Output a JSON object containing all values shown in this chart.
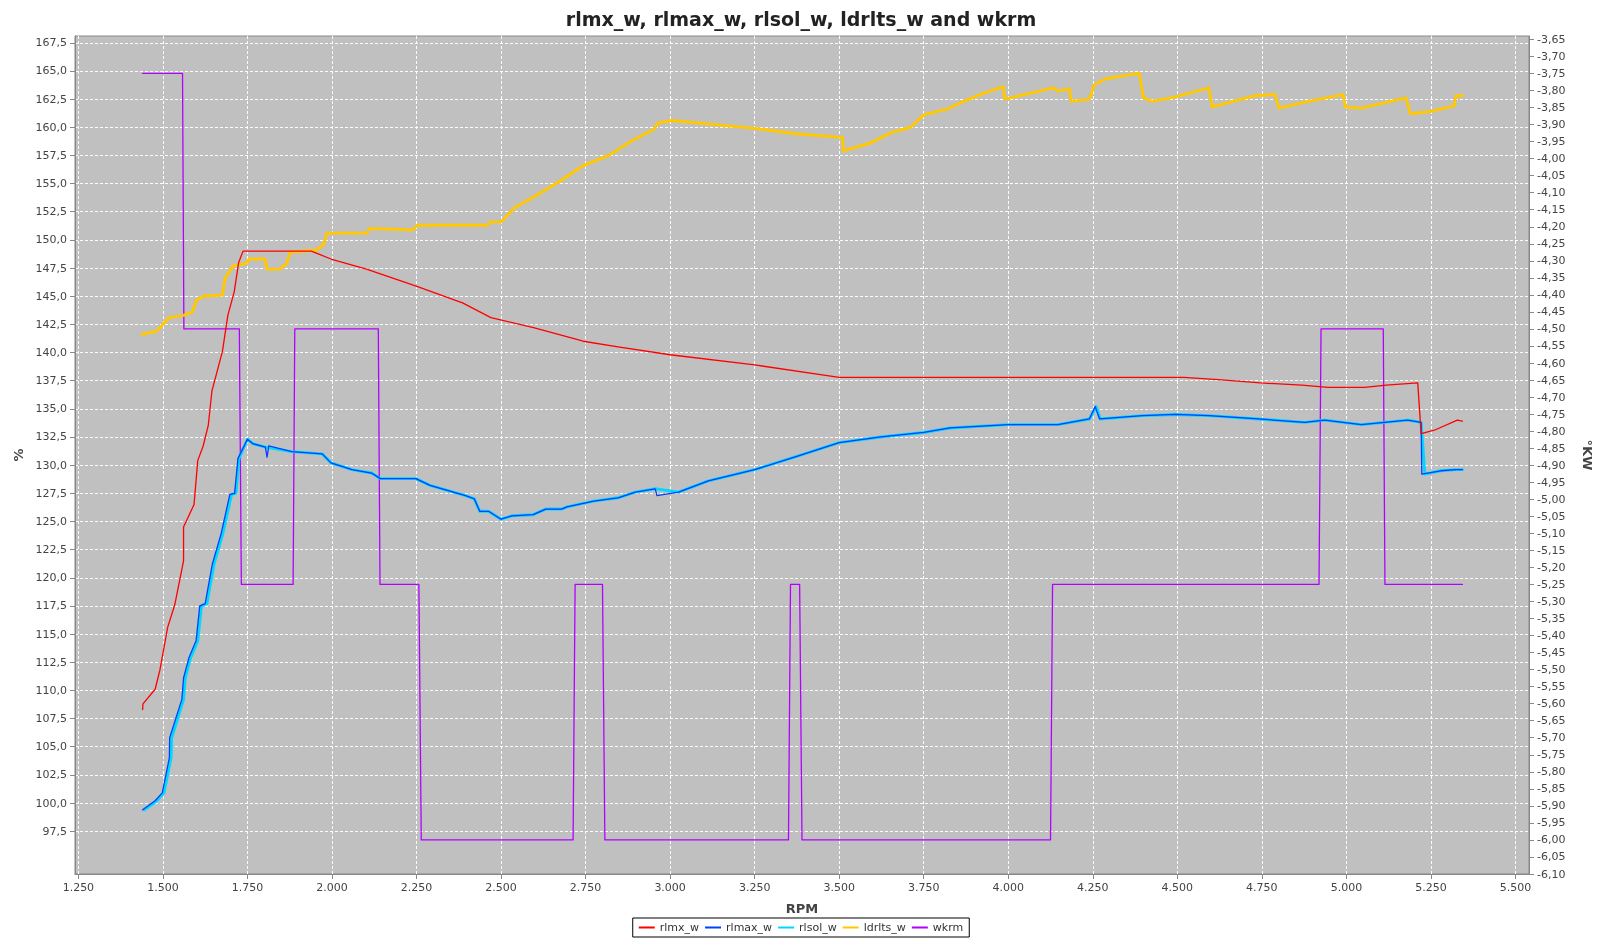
{
  "chart_data": {
    "type": "line",
    "title": "rlmx_w, rlmax_w, rlsol_w, ldrlts_w and wkrm",
    "xlabel": "RPM",
    "ylabel": "%",
    "y2label": "°KW",
    "xlim": [
      1240,
      5540
    ],
    "ylim": [
      93.7,
      168.1
    ],
    "y2lim": [
      -6.1,
      -3.64
    ],
    "xticks": [
      {
        "value": 1250,
        "label": "1.250"
      },
      {
        "value": 1500,
        "label": "1.500"
      },
      {
        "value": 1750,
        "label": "1.750"
      },
      {
        "value": 2000,
        "label": "2.000"
      },
      {
        "value": 2250,
        "label": "2.250"
      },
      {
        "value": 2500,
        "label": "2.500"
      },
      {
        "value": 2750,
        "label": "2.750"
      },
      {
        "value": 3000,
        "label": "3.000"
      },
      {
        "value": 3250,
        "label": "3.250"
      },
      {
        "value": 3500,
        "label": "3.500"
      },
      {
        "value": 3750,
        "label": "3.750"
      },
      {
        "value": 4000,
        "label": "4.000"
      },
      {
        "value": 4250,
        "label": "4.250"
      },
      {
        "value": 4500,
        "label": "4.500"
      },
      {
        "value": 4750,
        "label": "4.750"
      },
      {
        "value": 5000,
        "label": "5.000"
      },
      {
        "value": 5250,
        "label": "5.250"
      },
      {
        "value": 5500,
        "label": "5.500"
      }
    ],
    "yticks": [
      {
        "value": 97.5,
        "label": "97,5"
      },
      {
        "value": 100,
        "label": "100,0"
      },
      {
        "value": 102.5,
        "label": "102,5"
      },
      {
        "value": 105,
        "label": "105,0"
      },
      {
        "value": 107.5,
        "label": "107,5"
      },
      {
        "value": 110,
        "label": "110,0"
      },
      {
        "value": 112.5,
        "label": "112,5"
      },
      {
        "value": 115,
        "label": "115,0"
      },
      {
        "value": 117.5,
        "label": "117,5"
      },
      {
        "value": 120,
        "label": "120,0"
      },
      {
        "value": 122.5,
        "label": "122,5"
      },
      {
        "value": 125,
        "label": "125,0"
      },
      {
        "value": 127.5,
        "label": "127,5"
      },
      {
        "value": 130,
        "label": "130,0"
      },
      {
        "value": 132.5,
        "label": "132,5"
      },
      {
        "value": 135,
        "label": "135,0"
      },
      {
        "value": 137.5,
        "label": "137,5"
      },
      {
        "value": 140,
        "label": "140,0"
      },
      {
        "value": 142.5,
        "label": "142,5"
      },
      {
        "value": 145,
        "label": "145,0"
      },
      {
        "value": 147.5,
        "label": "147,5"
      },
      {
        "value": 150,
        "label": "150,0"
      },
      {
        "value": 152.5,
        "label": "152,5"
      },
      {
        "value": 155,
        "label": "155,0"
      },
      {
        "value": 157.5,
        "label": "157,5"
      },
      {
        "value": 160,
        "label": "160,0"
      },
      {
        "value": 162.5,
        "label": "162,5"
      },
      {
        "value": 165,
        "label": "165,0"
      },
      {
        "value": 167.5,
        "label": "167,5"
      }
    ],
    "y2ticks": [
      {
        "value": -6.1,
        "label": "-6,10"
      },
      {
        "value": -6.05,
        "label": "-6,05"
      },
      {
        "value": -6,
        "label": "-6,00"
      },
      {
        "value": -5.95,
        "label": "-5,95"
      },
      {
        "value": -5.9,
        "label": "-5,90"
      },
      {
        "value": -5.85,
        "label": "-5,85"
      },
      {
        "value": -5.8,
        "label": "-5,80"
      },
      {
        "value": -5.75,
        "label": "-5,75"
      },
      {
        "value": -5.7,
        "label": "-5,70"
      },
      {
        "value": -5.65,
        "label": "-5,65"
      },
      {
        "value": -5.6,
        "label": "-5,60"
      },
      {
        "value": -5.55,
        "label": "-5,55"
      },
      {
        "value": -5.5,
        "label": "-5,50"
      },
      {
        "value": -5.45,
        "label": "-5,45"
      },
      {
        "value": -5.4,
        "label": "-5,40"
      },
      {
        "value": -5.35,
        "label": "-5,35"
      },
      {
        "value": -5.3,
        "label": "-5,30"
      },
      {
        "value": -5.25,
        "label": "-5,25"
      },
      {
        "value": -5.2,
        "label": "-5,20"
      },
      {
        "value": -5.15,
        "label": "-5,15"
      },
      {
        "value": -5.1,
        "label": "-5,10"
      },
      {
        "value": -5.05,
        "label": "-5,05"
      },
      {
        "value": -5,
        "label": "-5,00"
      },
      {
        "value": -4.95,
        "label": "-4,95"
      },
      {
        "value": -4.9,
        "label": "-4,90"
      },
      {
        "value": -4.85,
        "label": "-4,85"
      },
      {
        "value": -4.8,
        "label": "-4,80"
      },
      {
        "value": -4.75,
        "label": "-4,75"
      },
      {
        "value": -4.7,
        "label": "-4,70"
      },
      {
        "value": -4.65,
        "label": "-4,65"
      },
      {
        "value": -4.6,
        "label": "-4,60"
      },
      {
        "value": -4.55,
        "label": "-4,55"
      },
      {
        "value": -4.5,
        "label": "-4,50"
      },
      {
        "value": -4.45,
        "label": "-4,45"
      },
      {
        "value": -4.4,
        "label": "-4,40"
      },
      {
        "value": -4.35,
        "label": "-4,35"
      },
      {
        "value": -4.3,
        "label": "-4,30"
      },
      {
        "value": -4.25,
        "label": "-4,25"
      },
      {
        "value": -4.2,
        "label": "-4,20"
      },
      {
        "value": -4.15,
        "label": "-4,15"
      },
      {
        "value": -4.1,
        "label": "-4,10"
      },
      {
        "value": -4.05,
        "label": "-4,05"
      },
      {
        "value": -4,
        "label": "-4,00"
      },
      {
        "value": -3.95,
        "label": "-3,95"
      },
      {
        "value": -3.9,
        "label": "-3,90"
      },
      {
        "value": -3.85,
        "label": "-3,85"
      },
      {
        "value": -3.8,
        "label": "-3,80"
      },
      {
        "value": -3.75,
        "label": "-3,75"
      },
      {
        "value": -3.7,
        "label": "-3,70"
      },
      {
        "value": -3.65,
        "label": "-3,65"
      }
    ],
    "grid": true,
    "legend": "bottom",
    "marker": "none",
    "line_style": "solid",
    "series": [
      {
        "name": "rlmx_w",
        "color": "#ff0000",
        "x": [
          1440,
          1441,
          1477,
          1491,
          1514,
          1535,
          1561,
          1561,
          1592,
          1603,
          1619,
          1634,
          1645,
          1676,
          1692,
          1711,
          1724,
          1737,
          1939,
          1997,
          2102,
          2249,
          2386,
          2470,
          2596,
          2743,
          2846,
          3000,
          3250,
          3500,
          4260,
          4520,
          4622,
          4745,
          4868,
          4946,
          5054,
          5118,
          5211,
          5221,
          5260,
          5328,
          5343
        ],
        "values": [
          108.3,
          108.8,
          110.1,
          111.8,
          115.6,
          117.6,
          121.5,
          124.5,
          126.5,
          130.4,
          131.7,
          133.5,
          136.6,
          140.1,
          143.3,
          145.4,
          148.0,
          149.0,
          149.0,
          148.3,
          147.4,
          145.9,
          144.4,
          143.1,
          142.2,
          141.0,
          140.5,
          139.8,
          138.9,
          137.8,
          137.8,
          137.8,
          137.6,
          137.3,
          137.1,
          136.9,
          136.9,
          137.1,
          137.3,
          132.8,
          133.1,
          134.0,
          133.9
        ]
      },
      {
        "name": "rlmax_w",
        "color": "#0040ff",
        "x": [
          1440,
          1477,
          1498,
          1519,
          1520,
          1556,
          1561,
          1577,
          1598,
          1609,
          1625,
          1646,
          1672,
          1698,
          1712,
          1722,
          1750,
          1766,
          1803,
          1808,
          1813,
          1881,
          1971,
          1997,
          2059,
          2117,
          2143,
          2248,
          2290,
          2395,
          2421,
          2437,
          2463,
          2500,
          2532,
          2595,
          2632,
          2679,
          2695,
          2774,
          2846,
          2897,
          2956,
          2961,
          3025,
          3113,
          3250,
          3377,
          3500,
          3623,
          3750,
          3828,
          4000,
          4147,
          4240,
          4257,
          4270,
          4397,
          4495,
          4593,
          4740,
          4877,
          4936,
          5044,
          5181,
          5221,
          5223,
          5279,
          5324,
          5343
        ],
        "values": [
          99.4,
          100.2,
          100.9,
          104.0,
          105.8,
          109.2,
          111.1,
          112.9,
          114.4,
          117.5,
          117.7,
          121.2,
          123.9,
          127.4,
          127.5,
          130.6,
          132.3,
          131.9,
          131.6,
          130.7,
          131.7,
          131.2,
          131.0,
          130.2,
          129.6,
          129.3,
          128.8,
          128.8,
          128.2,
          127.3,
          127.0,
          125.9,
          125.9,
          125.2,
          125.5,
          125.6,
          126.1,
          126.1,
          126.3,
          126.8,
          127.1,
          127.6,
          127.9,
          127.3,
          127.6,
          128.6,
          129.6,
          130.8,
          132.0,
          132.5,
          132.9,
          133.3,
          133.6,
          133.6,
          134.1,
          135.2,
          134.1,
          134.4,
          134.5,
          134.4,
          134.1,
          133.8,
          134.0,
          133.6,
          134.0,
          133.8,
          129.2,
          129.5,
          129.6,
          129.6
        ]
      },
      {
        "name": "rlsol_w",
        "color": "#00d8ff",
        "x": [
          1445,
          1482,
          1503,
          1524,
          1526,
          1561,
          1566,
          1582,
          1603,
          1614,
          1630,
          1651,
          1677,
          1703,
          1716,
          1725,
          1750,
          1766,
          1803,
          1881,
          1971,
          1997,
          2059,
          2117,
          2143,
          2248,
          2290,
          2395,
          2421,
          2437,
          2463,
          2500,
          2532,
          2595,
          2632,
          2679,
          2695,
          2774,
          2846,
          2897,
          2956,
          3025,
          3113,
          3250,
          3377,
          3500,
          3623,
          3750,
          3828,
          4000,
          4147,
          4240,
          4260,
          4272,
          4397,
          4495,
          4593,
          4740,
          4877,
          4936,
          5044,
          5181,
          5221,
          5232,
          5279,
          5324,
          5343
        ],
        "values": [
          99.4,
          100.2,
          100.9,
          104.0,
          105.8,
          109.2,
          111.1,
          112.9,
          114.4,
          117.5,
          117.7,
          121.2,
          123.9,
          127.4,
          127.5,
          130.6,
          132.3,
          131.9,
          131.6,
          131.2,
          131.0,
          130.2,
          129.6,
          129.3,
          128.8,
          128.8,
          128.2,
          127.3,
          127.0,
          125.9,
          125.9,
          125.2,
          125.5,
          125.6,
          126.1,
          126.1,
          126.3,
          126.8,
          127.1,
          127.6,
          127.9,
          127.6,
          128.6,
          129.6,
          130.8,
          132.0,
          132.5,
          132.9,
          133.3,
          133.6,
          133.6,
          134.1,
          135.2,
          134.1,
          134.4,
          134.5,
          134.4,
          134.1,
          133.8,
          134.0,
          133.6,
          134.0,
          133.8,
          129.2,
          129.5,
          129.6,
          129.6
        ]
      },
      {
        "name": "ldrlts_w",
        "color": "#ffc800",
        "x": [
          1438,
          1482,
          1519,
          1561,
          1587,
          1598,
          1619,
          1676,
          1684,
          1708,
          1745,
          1755,
          1802,
          1808,
          1845,
          1866,
          1876,
          1955,
          1976,
          1984,
          2102,
          2111,
          2239,
          2252,
          2459,
          2470,
          2501,
          2538,
          2596,
          2674,
          2743,
          2819,
          2887,
          2951,
          2966,
          3005,
          3250,
          3377,
          3510,
          3512,
          3593,
          3652,
          3711,
          3750,
          3819,
          3868,
          3926,
          3985,
          3990,
          4064,
          4132,
          4147,
          4181,
          4186,
          4240,
          4255,
          4289,
          4387,
          4400,
          4426,
          4495,
          4593,
          4603,
          4730,
          4789,
          4800,
          4887,
          4990,
          4997,
          5044,
          5176,
          5189,
          5250,
          5319,
          5324,
          5343
        ],
        "values": [
          141.6,
          141.9,
          143.1,
          143.3,
          143.6,
          144.6,
          145.0,
          145.1,
          146.6,
          147.7,
          147.9,
          148.3,
          148.3,
          147.4,
          147.4,
          147.9,
          148.9,
          149.1,
          149.6,
          150.6,
          150.6,
          151.0,
          150.9,
          151.3,
          151.3,
          151.6,
          151.6,
          152.8,
          153.8,
          155.2,
          156.6,
          157.5,
          158.8,
          159.8,
          160.4,
          160.6,
          159.9,
          159.4,
          159.1,
          157.9,
          158.6,
          159.5,
          160.0,
          161.1,
          161.6,
          162.3,
          163.0,
          163.6,
          162.5,
          163.0,
          163.5,
          163.2,
          163.4,
          162.3,
          162.5,
          163.8,
          164.3,
          164.8,
          162.6,
          162.3,
          162.7,
          163.5,
          161.8,
          162.8,
          162.9,
          161.7,
          162.3,
          162.9,
          161.8,
          161.7,
          162.6,
          161.2,
          161.4,
          161.9,
          162.8,
          162.8
        ]
      },
      {
        "name": "wkrm",
        "color": "#b400ff",
        "axis": "y2",
        "x": [
          1440,
          1558,
          1562,
          1726,
          1732,
          1885,
          1890,
          2137,
          2142,
          2257,
          2264,
          2713,
          2719,
          2800,
          2807,
          3350,
          3356,
          3383,
          3390,
          4125,
          4131,
          4919,
          4925,
          5109,
          5114,
          5343
        ],
        "values": [
          -3.75,
          -3.75,
          -4.5,
          -4.5,
          -5.25,
          -5.25,
          -4.5,
          -4.5,
          -5.25,
          -5.25,
          -6.0,
          -6.0,
          -5.25,
          -5.25,
          -6.0,
          -6.0,
          -5.25,
          -5.25,
          -6.0,
          -6.0,
          -5.25,
          -5.25,
          -4.5,
          -4.5,
          -5.25,
          -5.25
        ]
      }
    ]
  }
}
